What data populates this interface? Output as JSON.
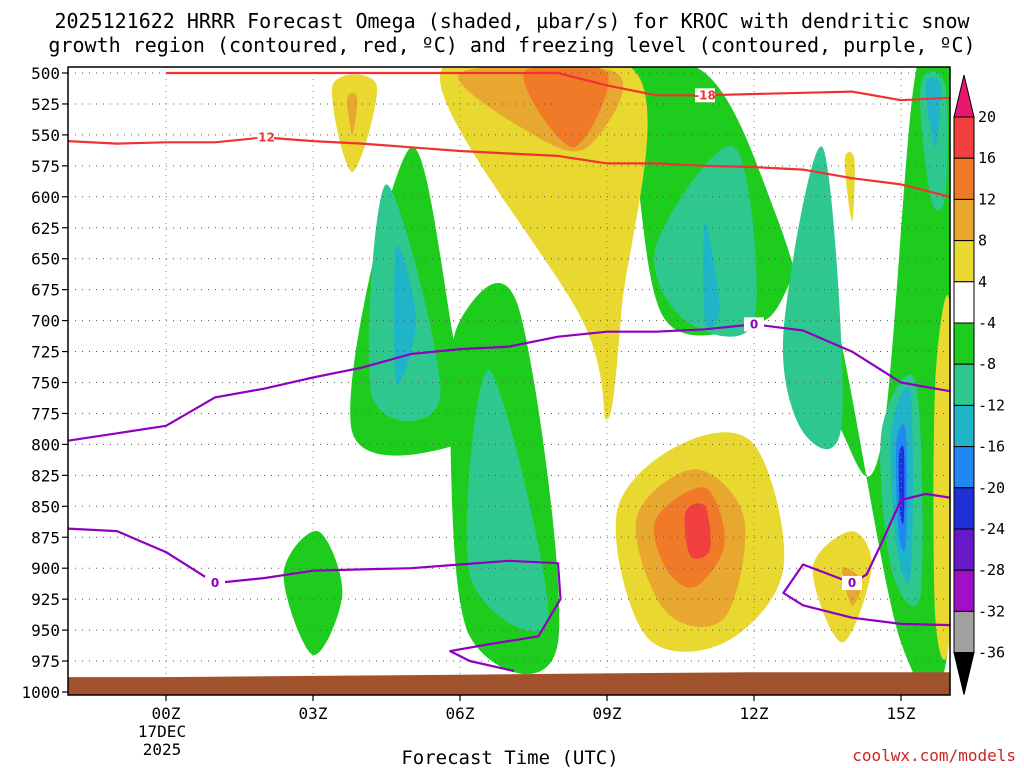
{
  "chart_data": {
    "type": "contour",
    "title_line1": "2025121622 HRRR Forecast Omega (shaded, µbar/s) for KROC with dendritic snow",
    "title_line2": "growth region (contoured, red, ºC) and freezing level (contoured, purple, ºC)",
    "xlabel": "Forecast Time (UTC)",
    "x_range_hours": [
      -2,
      16
    ],
    "x_ticks": [
      {
        "hour": 0,
        "label": "00Z",
        "sub1": "17DEC",
        "sub2": "2025"
      },
      {
        "hour": 3,
        "label": "03Z"
      },
      {
        "hour": 6,
        "label": "06Z"
      },
      {
        "hour": 9,
        "label": "09Z"
      },
      {
        "hour": 12,
        "label": "12Z"
      },
      {
        "hour": 15,
        "label": "15Z"
      }
    ],
    "y_range_mb": [
      500,
      1000
    ],
    "y_ticks": [
      "500",
      "525",
      "550",
      "575",
      "600",
      "625",
      "650",
      "675",
      "700",
      "725",
      "750",
      "775",
      "800",
      "825",
      "850",
      "875",
      "900",
      "925",
      "950",
      "975",
      "1000"
    ],
    "colorbar": {
      "labels": [
        "20",
        "16",
        "12",
        "8",
        "4",
        "-4",
        "-8",
        "-12",
        "-16",
        "-20",
        "-24",
        "-28",
        "-32",
        "-36"
      ],
      "colors": [
        "#e8186e",
        "#f24040",
        "#f07a28",
        "#e8a830",
        "#e8d830",
        "#ffffff",
        "#1ecc1e",
        "#2ec88e",
        "#20b4c8",
        "#2088f0",
        "#2030d8",
        "#6818c8",
        "#a010c8",
        "#a0a0a0",
        "#000000"
      ]
    },
    "omega_regions": [
      {
        "level": -4,
        "color": "#1ecc1e",
        "points": [
          [
            3.8,
            790
          ],
          [
            5.0,
            560
          ],
          [
            6.0,
            740
          ],
          [
            6.6,
            790
          ]
        ]
      },
      {
        "level": -4,
        "color": "#1ecc1e",
        "points": [
          [
            6.0,
            700
          ],
          [
            7.2,
            690
          ],
          [
            8.0,
            960
          ],
          [
            6.2,
            955
          ],
          [
            5.8,
            790
          ]
        ]
      },
      {
        "level": -4,
        "color": "#1ecc1e",
        "points": [
          [
            8.8,
            500
          ],
          [
            11.0,
            500
          ],
          [
            12.5,
            620
          ],
          [
            13.8,
            790
          ],
          [
            14.6,
            800
          ],
          [
            15.3,
            500
          ],
          [
            16.0,
            500
          ],
          [
            16.0,
            950
          ],
          [
            15.0,
            960
          ],
          [
            13.4,
            660
          ],
          [
            12.2,
            700
          ],
          [
            10.2,
            700
          ],
          [
            9.5,
            560
          ]
        ]
      },
      {
        "level": -4,
        "color": "#1ecc1e",
        "points": [
          [
            2.4,
            905
          ],
          [
            3.1,
            870
          ],
          [
            3.6,
            920
          ],
          [
            3.0,
            970
          ]
        ]
      },
      {
        "level": -8,
        "color": "#2ec88e",
        "points": [
          [
            4.5,
            590
          ],
          [
            5.6,
            760
          ],
          [
            4.2,
            760
          ]
        ]
      },
      {
        "level": -8,
        "color": "#2ec88e",
        "points": [
          [
            6.6,
            740
          ],
          [
            7.8,
            940
          ],
          [
            6.2,
            905
          ]
        ]
      },
      {
        "level": -8,
        "color": "#2ec88e",
        "points": [
          [
            10.0,
            640
          ],
          [
            11.6,
            560
          ],
          [
            12.0,
            700
          ],
          [
            10.6,
            700
          ]
        ]
      },
      {
        "level": -8,
        "color": "#2ec88e",
        "points": [
          [
            12.6,
            710
          ],
          [
            13.4,
            560
          ],
          [
            13.8,
            780
          ],
          [
            13.0,
            790
          ]
        ]
      },
      {
        "level": -8,
        "color": "#2ec88e",
        "points": [
          [
            14.6,
            790
          ],
          [
            15.3,
            750
          ],
          [
            15.4,
            920
          ],
          [
            14.8,
            900
          ]
        ]
      },
      {
        "level": -8,
        "color": "#2ec88e",
        "points": [
          [
            15.4,
            510
          ],
          [
            15.9,
            510
          ],
          [
            15.9,
            600
          ],
          [
            15.6,
            600
          ]
        ]
      },
      {
        "level": -12,
        "color": "#20b4c8",
        "points": [
          [
            4.7,
            640
          ],
          [
            5.1,
            700
          ],
          [
            4.7,
            750
          ]
        ]
      },
      {
        "level": -12,
        "color": "#20b4c8",
        "points": [
          [
            11.0,
            620
          ],
          [
            11.3,
            690
          ],
          [
            11.0,
            700
          ]
        ]
      },
      {
        "level": -12,
        "color": "#20b4c8",
        "points": [
          [
            15.5,
            510
          ],
          [
            15.8,
            510
          ],
          [
            15.7,
            560
          ]
        ]
      },
      {
        "level": -12,
        "color": "#20b4c8",
        "points": [
          [
            14.8,
            790
          ],
          [
            15.2,
            760
          ],
          [
            15.2,
            905
          ],
          [
            14.9,
            880
          ]
        ]
      },
      {
        "level": -16,
        "color": "#2088f0",
        "points": [
          [
            14.9,
            800
          ],
          [
            15.1,
            790
          ],
          [
            15.1,
            880
          ],
          [
            14.95,
            870
          ]
        ]
      },
      {
        "level": -20,
        "color": "#2030d8",
        "points": [
          [
            14.96,
            810
          ],
          [
            15.06,
            805
          ],
          [
            15.06,
            860
          ],
          [
            14.98,
            855
          ]
        ]
      },
      {
        "level": 4,
        "color": "#e8d830",
        "points": [
          [
            3.4,
            510
          ],
          [
            4.3,
            510
          ],
          [
            3.8,
            580
          ]
        ]
      },
      {
        "level": 4,
        "color": "#e8d830",
        "points": [
          [
            5.6,
            500
          ],
          [
            9.6,
            500
          ],
          [
            9.3,
            690
          ],
          [
            9.0,
            780
          ],
          [
            8.5,
            700
          ]
        ]
      },
      {
        "level": 4,
        "color": "#e8d830",
        "points": [
          [
            9.2,
            855
          ],
          [
            10.5,
            800
          ],
          [
            12.0,
            800
          ],
          [
            12.6,
            900
          ],
          [
            11.4,
            960
          ],
          [
            9.8,
            955
          ]
        ]
      },
      {
        "level": 4,
        "color": "#e8d830",
        "points": [
          [
            13.2,
            900
          ],
          [
            14.0,
            870
          ],
          [
            14.4,
            900
          ],
          [
            13.8,
            960
          ]
        ]
      },
      {
        "level": 4,
        "color": "#e8d830",
        "points": [
          [
            13.85,
            570
          ],
          [
            14.05,
            570
          ],
          [
            14.0,
            620
          ]
        ]
      },
      {
        "level": 4,
        "color": "#e8d830",
        "points": [
          [
            15.7,
            750
          ],
          [
            16.0,
            690
          ],
          [
            16.0,
            950
          ],
          [
            15.7,
            940
          ]
        ]
      },
      {
        "level": 8,
        "color": "#e8a830",
        "points": [
          [
            6.0,
            500
          ],
          [
            9.2,
            500
          ],
          [
            8.6,
            560
          ],
          [
            7.5,
            550
          ]
        ]
      },
      {
        "level": 8,
        "color": "#e8a830",
        "points": [
          [
            9.6,
            860
          ],
          [
            10.8,
            820
          ],
          [
            11.8,
            860
          ],
          [
            11.4,
            940
          ],
          [
            10.2,
            935
          ]
        ]
      },
      {
        "level": 8,
        "color": "#e8a830",
        "points": [
          [
            13.8,
            900
          ],
          [
            14.2,
            910
          ],
          [
            14.0,
            930
          ]
        ]
      },
      {
        "level": 8,
        "color": "#e8a830",
        "points": [
          [
            3.7,
            520
          ],
          [
            3.9,
            520
          ],
          [
            3.8,
            550
          ]
        ]
      },
      {
        "level": 12,
        "color": "#f07a28",
        "points": [
          [
            7.3,
            500
          ],
          [
            9.0,
            500
          ],
          [
            8.3,
            560
          ]
        ]
      },
      {
        "level": 12,
        "color": "#f07a28",
        "points": [
          [
            10.0,
            860
          ],
          [
            11.0,
            835
          ],
          [
            11.4,
            880
          ],
          [
            10.8,
            915
          ],
          [
            10.2,
            900
          ]
        ]
      },
      {
        "level": 16,
        "color": "#f24040",
        "points": [
          [
            10.6,
            855
          ],
          [
            11.0,
            850
          ],
          [
            11.1,
            885
          ],
          [
            10.7,
            890
          ]
        ]
      }
    ],
    "dgz_contours": [
      {
        "label": "-12",
        "color": "#f03232",
        "points": [
          [
            -2,
            555
          ],
          [
            -1,
            557
          ],
          [
            0,
            556
          ],
          [
            1,
            556
          ],
          [
            2,
            552
          ],
          [
            3,
            555
          ],
          [
            4,
            557
          ],
          [
            5,
            560
          ],
          [
            6,
            563
          ],
          [
            7,
            565
          ],
          [
            8,
            567
          ],
          [
            9,
            573
          ],
          [
            10,
            573
          ],
          [
            11,
            575
          ],
          [
            12,
            576
          ],
          [
            13,
            578
          ],
          [
            14,
            585
          ],
          [
            15,
            590
          ],
          [
            16,
            600
          ]
        ],
        "label_at_hour": 2.0
      },
      {
        "label": "-18",
        "color": "#f03232",
        "points": [
          [
            0,
            500
          ],
          [
            1,
            500
          ],
          [
            2,
            500
          ],
          [
            3,
            500
          ],
          [
            4,
            500
          ],
          [
            5,
            500
          ],
          [
            6,
            500
          ],
          [
            7,
            500
          ],
          [
            8,
            500
          ],
          [
            9,
            510
          ],
          [
            10,
            518
          ],
          [
            11,
            518
          ],
          [
            12,
            517
          ],
          [
            13,
            516
          ],
          [
            14,
            515
          ],
          [
            15,
            522
          ],
          [
            16,
            520
          ]
        ],
        "label_at_hour": 11.0
      }
    ],
    "freezing_contours": [
      {
        "label": "0",
        "color": "#9000c0",
        "points": [
          [
            -2,
            797
          ],
          [
            -1,
            791
          ],
          [
            0,
            785
          ],
          [
            1,
            762
          ],
          [
            2,
            755
          ],
          [
            3,
            746
          ],
          [
            4,
            738
          ],
          [
            5,
            727
          ],
          [
            6,
            723
          ],
          [
            7,
            721
          ],
          [
            8,
            713
          ],
          [
            9,
            709
          ],
          [
            10,
            709
          ],
          [
            11,
            707
          ],
          [
            12,
            703
          ],
          [
            13,
            708
          ],
          [
            14,
            725
          ],
          [
            15,
            750
          ],
          [
            16,
            757
          ]
        ],
        "label_at_hour": 12.0
      },
      {
        "label": "0",
        "color": "#9000c0",
        "points": [
          [
            -2,
            868
          ],
          [
            -1,
            870
          ],
          [
            0,
            887
          ],
          [
            1,
            912
          ],
          [
            2,
            908
          ],
          [
            3,
            902
          ],
          [
            4,
            901
          ],
          [
            5,
            900
          ],
          [
            6,
            897
          ],
          [
            7,
            894
          ],
          [
            8,
            896
          ],
          [
            8.05,
            925
          ],
          [
            7.6,
            955
          ],
          [
            6.5,
            962
          ],
          [
            5.8,
            967
          ],
          [
            6.2,
            975
          ],
          [
            7.1,
            983
          ]
        ],
        "label_at_hour": 1.0
      },
      {
        "label": "0",
        "color": "#9000c0",
        "points": [
          [
            16,
            843
          ],
          [
            15.5,
            840
          ],
          [
            15,
            845
          ],
          [
            14.6,
            880
          ],
          [
            14.3,
            905
          ],
          [
            14.0,
            912
          ],
          [
            13.6,
            906
          ],
          [
            13.0,
            897
          ],
          [
            12.6,
            920
          ],
          [
            13.0,
            930
          ],
          [
            14.0,
            940
          ],
          [
            15.0,
            945
          ],
          [
            16,
            946
          ]
        ],
        "label_at_hour": 14.0
      }
    ],
    "credit": "coolwx.com/models"
  }
}
